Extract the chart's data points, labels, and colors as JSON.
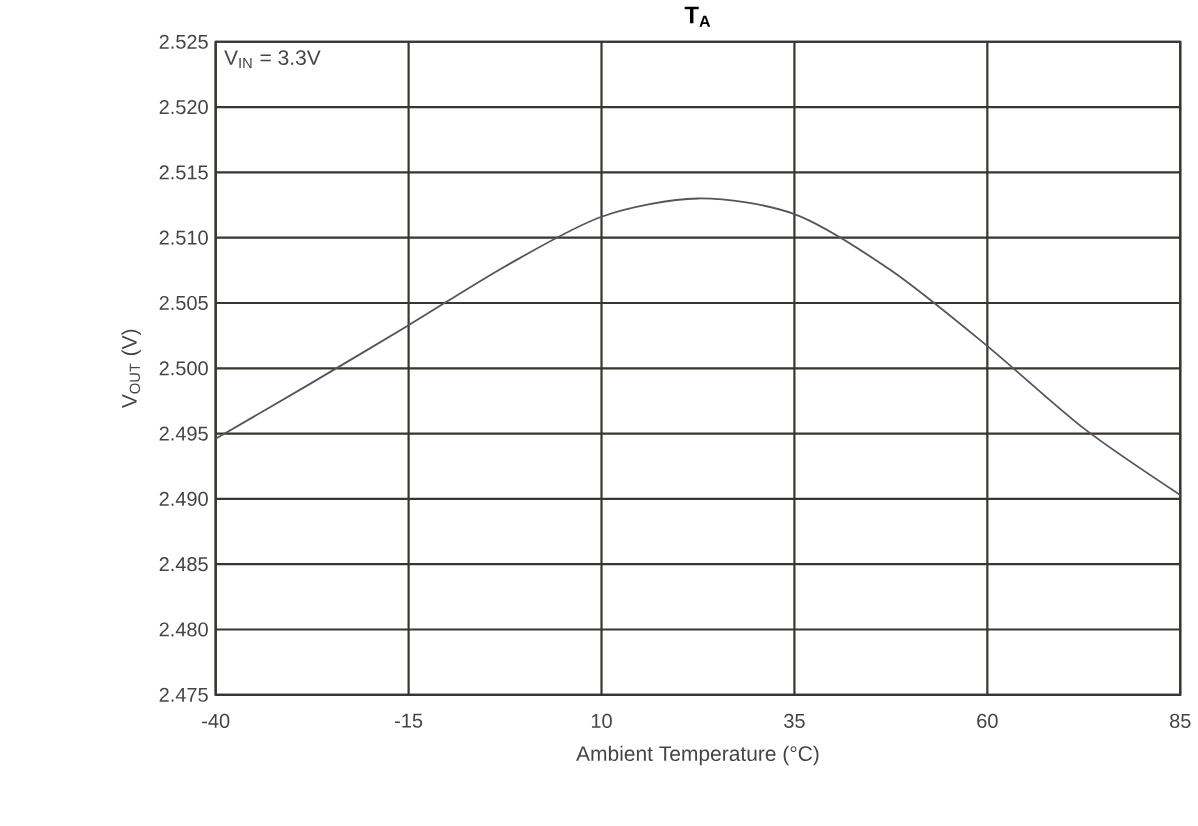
{
  "chart_data": {
    "type": "line",
    "title": "T$_{A}$",
    "xlabel": "Ambient Temperature (°C)",
    "ylabel": "V$_{OUT}$ (V)",
    "annotations": [
      "V$_{IN}$ = 3.3V"
    ],
    "x": [
      -40,
      -27.5,
      -15,
      -2.5,
      10,
      22.5,
      35,
      47.5,
      60,
      72.5,
      85
    ],
    "series": [
      {
        "color": "#555555",
        "values": [
          2.4946,
          2.4989,
          2.5033,
          2.5078,
          2.5116,
          2.513,
          2.5118,
          2.5075,
          2.5017,
          2.4954,
          2.4903
        ]
      }
    ],
    "xlim": [
      -40,
      85
    ],
    "xticks": [
      -40,
      -15,
      10,
      35,
      60,
      85
    ],
    "ylim": [
      2.475,
      2.525
    ],
    "yticks": [
      {
        "value": 2.475,
        "label": "2.475"
      },
      {
        "value": 2.48,
        "label": "2.480"
      },
      {
        "value": 2.485,
        "label": "2.485"
      },
      {
        "value": 2.49,
        "label": "2.490"
      },
      {
        "value": 2.495,
        "label": "2.495"
      },
      {
        "value": 2.5,
        "label": "2.500"
      },
      {
        "value": 2.505,
        "label": "2.505"
      },
      {
        "value": 2.51,
        "label": "2.510"
      },
      {
        "value": 2.515,
        "label": "2.515"
      },
      {
        "value": 2.52,
        "label": "2.520"
      },
      {
        "value": 2.525,
        "label": "2.525"
      }
    ],
    "grid": true
  }
}
